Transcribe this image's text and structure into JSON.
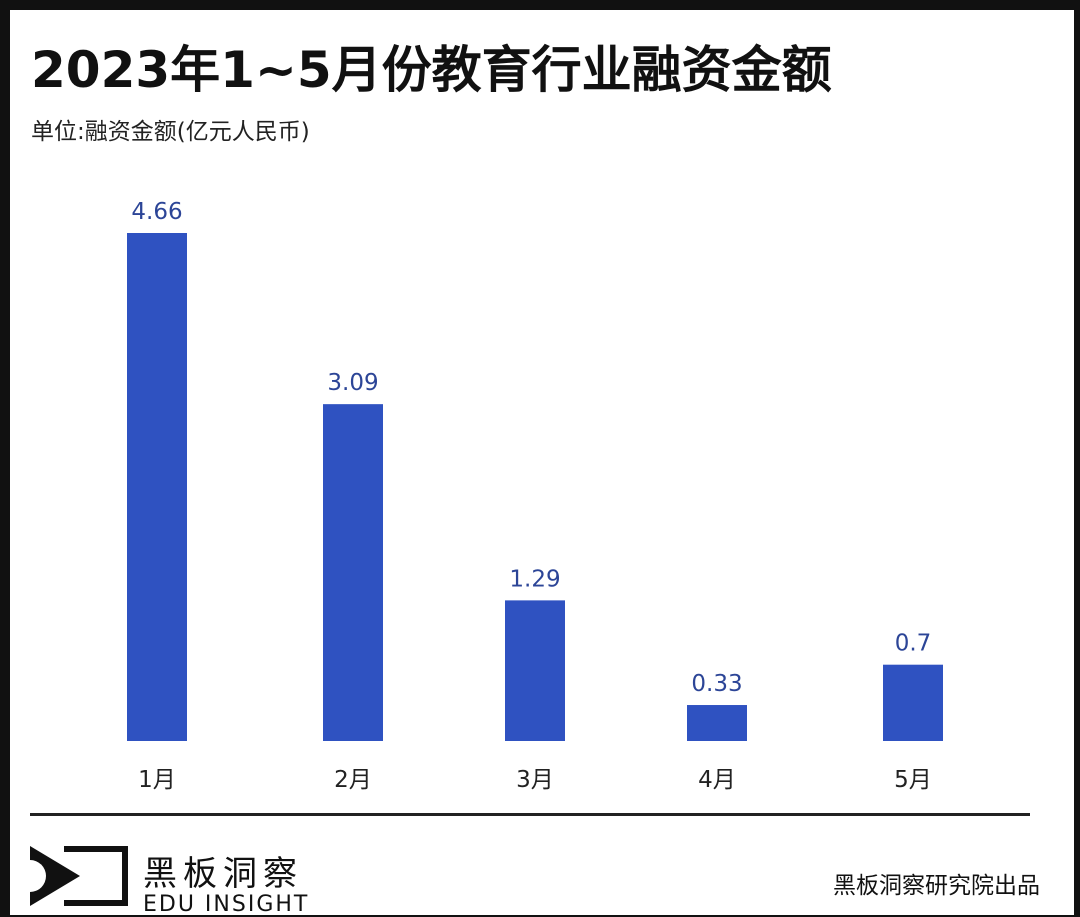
{
  "chart_data": {
    "type": "bar",
    "title": "2023年1~5月份教育行业融资金额",
    "subtitle": "单位:融资金额(亿元人民币)",
    "categories": [
      "1月",
      "2月",
      "3月",
      "4月",
      "5月"
    ],
    "values": [
      4.66,
      3.09,
      1.29,
      0.33,
      0.7
    ],
    "value_labels": [
      "4.66",
      "3.09",
      "1.29",
      "0.33",
      "0.7"
    ],
    "ylim": [
      0,
      4.66
    ],
    "grid": false,
    "bar_color": "#2f52c1",
    "label_color": "#2c4597"
  },
  "footer": {
    "brand_cn": "黑板洞察",
    "brand_en": "EDU INSIGHT",
    "credit": "黑板洞察研究院出品"
  }
}
